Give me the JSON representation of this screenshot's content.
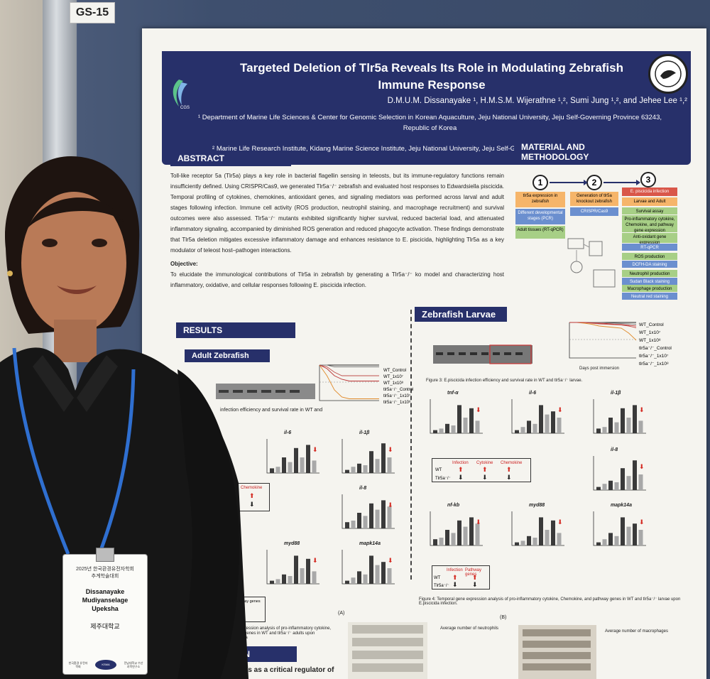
{
  "booth_label": "GS-15",
  "poster": {
    "title_line1": "Targeted Deletion of Tlr5a Reveals Its Role in Modulating Zebrafish",
    "title_line2": "Immune Response",
    "authors": "D.M.U.M. Dissanayake ¹, H.M.S.M. Wijerathne ¹,², Sumi Jung ¹,², and Jehee Lee ¹,²",
    "affiliation1_line1": "¹ Department of Marine Life Sciences & Center for Genomic Selection in Korean Aquaculture, Jeju National University, Jeju Self-Governing Province 63243,",
    "affiliation1_line2": "Republic of Korea",
    "affiliation2": "² Marine Life Research Institute, Kidang Marine Science Institute, Jeju National University, Jeju Self-Governing Province 63333, Republic of Korea",
    "abstract_heading": "ABSTRACT",
    "abstract_text": "Toll-like receptor 5a (Tlr5a) plays a key role in bacterial flagellin sensing in teleosts, but its immune-regulatory functions remain insufficiently defined. Using CRISPR/Cas9, we generated Tlr5a⁻/⁻ zebrafish and evaluated host responses to Edwardsiella piscicida. Temporal profiling of cytokines, chemokines, antioxidant genes, and signaling mediators was performed across larval and adult stages following infection. Immune cell activity (ROS production, neutrophil staining, and macrophage recruitment) and survival outcomes were also assessed. Tlr5a⁻/⁻ mutants exhibited significantly higher survival, reduced bacterial load, and attenuated inflammatory signaling, accompanied by diminished ROS generation and reduced phagocyte activation. These findings demonstrate that Tlr5a deletion mitigates excessive inflammatory damage and enhances resistance to E. piscicida, highlighting Tlr5a as a key modulator of teleost host–pathogen interactions.",
    "objective_heading": "Objective:",
    "objective_text": "To elucidate the immunological contributions of Tlr5a in zebrafish by generating a Tlr5a⁻/⁻ ko model and characterizing host inflammatory, oxidative, and cellular responses following E. piscicida infection.",
    "methods_heading": "MATERIAL AND METHODOLOGY",
    "flow": {
      "step1": "1",
      "step2": "2",
      "step3": "3",
      "box1": "tlr5a expression in zebrafish",
      "box1b": "Different developmental stages (PCR)",
      "box1c": "Adult tissues (RT-qPCR)",
      "box2": "Generation of tlr5a knockout zebrafish",
      "box2b": "CRISPR/Cas9",
      "box3": "E. piscicida infection",
      "box3b": "Larvae and Adult",
      "box3c": "Survival assay",
      "box3d": "Pro-inflammatory cytokine, Chemokine, and pathway gene expression",
      "box3e": "Anti-oxidant gene expression",
      "box3f": "RT-qPCR",
      "box3g": "ROS production",
      "box3h": "DCFH-DA staining",
      "box3i": "Neutrophil production",
      "box3j": "Sudan Black staining",
      "box3k": "Macrophage production",
      "box3l": "Neutral red staining"
    },
    "results_heading": "RESULTS",
    "adult_heading": "Adult Zebrafish",
    "larvae_heading": "Zebrafish Larvae",
    "survival_legend": [
      "WT_Control",
      "WT_1x10⁷",
      "WT_1x10⁸",
      "tlr5a⁻/⁻_Control",
      "tlr5a⁻/⁻_1x10⁷",
      "tlr5a⁻/⁻_1x10⁸"
    ],
    "survival_axis_x": "Days post immersion",
    "survival_axis_y": "Survival (%)",
    "survival_50": "50% survival",
    "larvae_fig_caption": "Figure 3: E.piscicida infection efficiency and survival rate in WT and tlr5a⁻/⁻ larvae.",
    "adult_fig_caption": "infection efficiency and survival rate in WT and",
    "larvae_gene_labels": [
      "tnf-α",
      "il-6",
      "il-1β",
      "il-8",
      "nf-kb",
      "myd88",
      "mapk14a"
    ],
    "adult_gene_labels": [
      "il-6",
      "il-1β",
      "il-8",
      "myd88",
      "mapk14a"
    ],
    "summary_table": {
      "col1": "Infection",
      "col2": "Cytokine",
      "col3": "Chemokine",
      "row1": "WT",
      "row2": "Tlr5a⁻/⁻"
    },
    "summary_table2": {
      "col1": "Infection",
      "col2": "Pathway genes",
      "row1": "WT",
      "row2": "Tlr5a⁻/⁻"
    },
    "adult_chemokine": "Chemokine",
    "adult_pathway": "Pathway genes",
    "fig4_caption": "Figure 4: Temporal gene expression analysis of pro-inflammatory cytokine, Chemokine, and pathway genes in WT and tlr5a⁻/⁻ larvae upon E.piscicida infection.",
    "adult_fig_caption2": "gene expression analysis of pro-inflammatory cytokine, pathway genes in WT and tlr5a⁻/⁻ adults upon E.piscicida",
    "panel_a": "(A)",
    "panel_b": "(B)",
    "neutrophil_title": "Average number of neutrophils",
    "macrophage_title": "Average number of macrophages",
    "conclusion_heading": "CLUSION",
    "conclusion_text": "5a functions as a critical regulator of",
    "legend_wt": "WT",
    "legend_ko": "tlr5a⁻/⁻"
  },
  "badge": {
    "conference_line1": "2025년 한국환경유전자학회",
    "conference_line2": "추계학술대회",
    "name_line1": "Dissanayake",
    "name_line2": "Mudiyanselage",
    "name_line3": "Upeksha",
    "university": "제주대학교",
    "logo1": "한국환경 유전자학회",
    "logo2": "KSMA",
    "logo3": "전남대학교 수산과학연구소"
  },
  "colors": {
    "poster_navy": "#27306a",
    "wall_blue": "#3e4f6e",
    "shirt_black": "#161616",
    "lanyard_blue": "#2f6fd0",
    "bar_dark": "#3a3a3a",
    "bar_light": "#a8a8a8",
    "arrow_red": "#d42a22"
  }
}
